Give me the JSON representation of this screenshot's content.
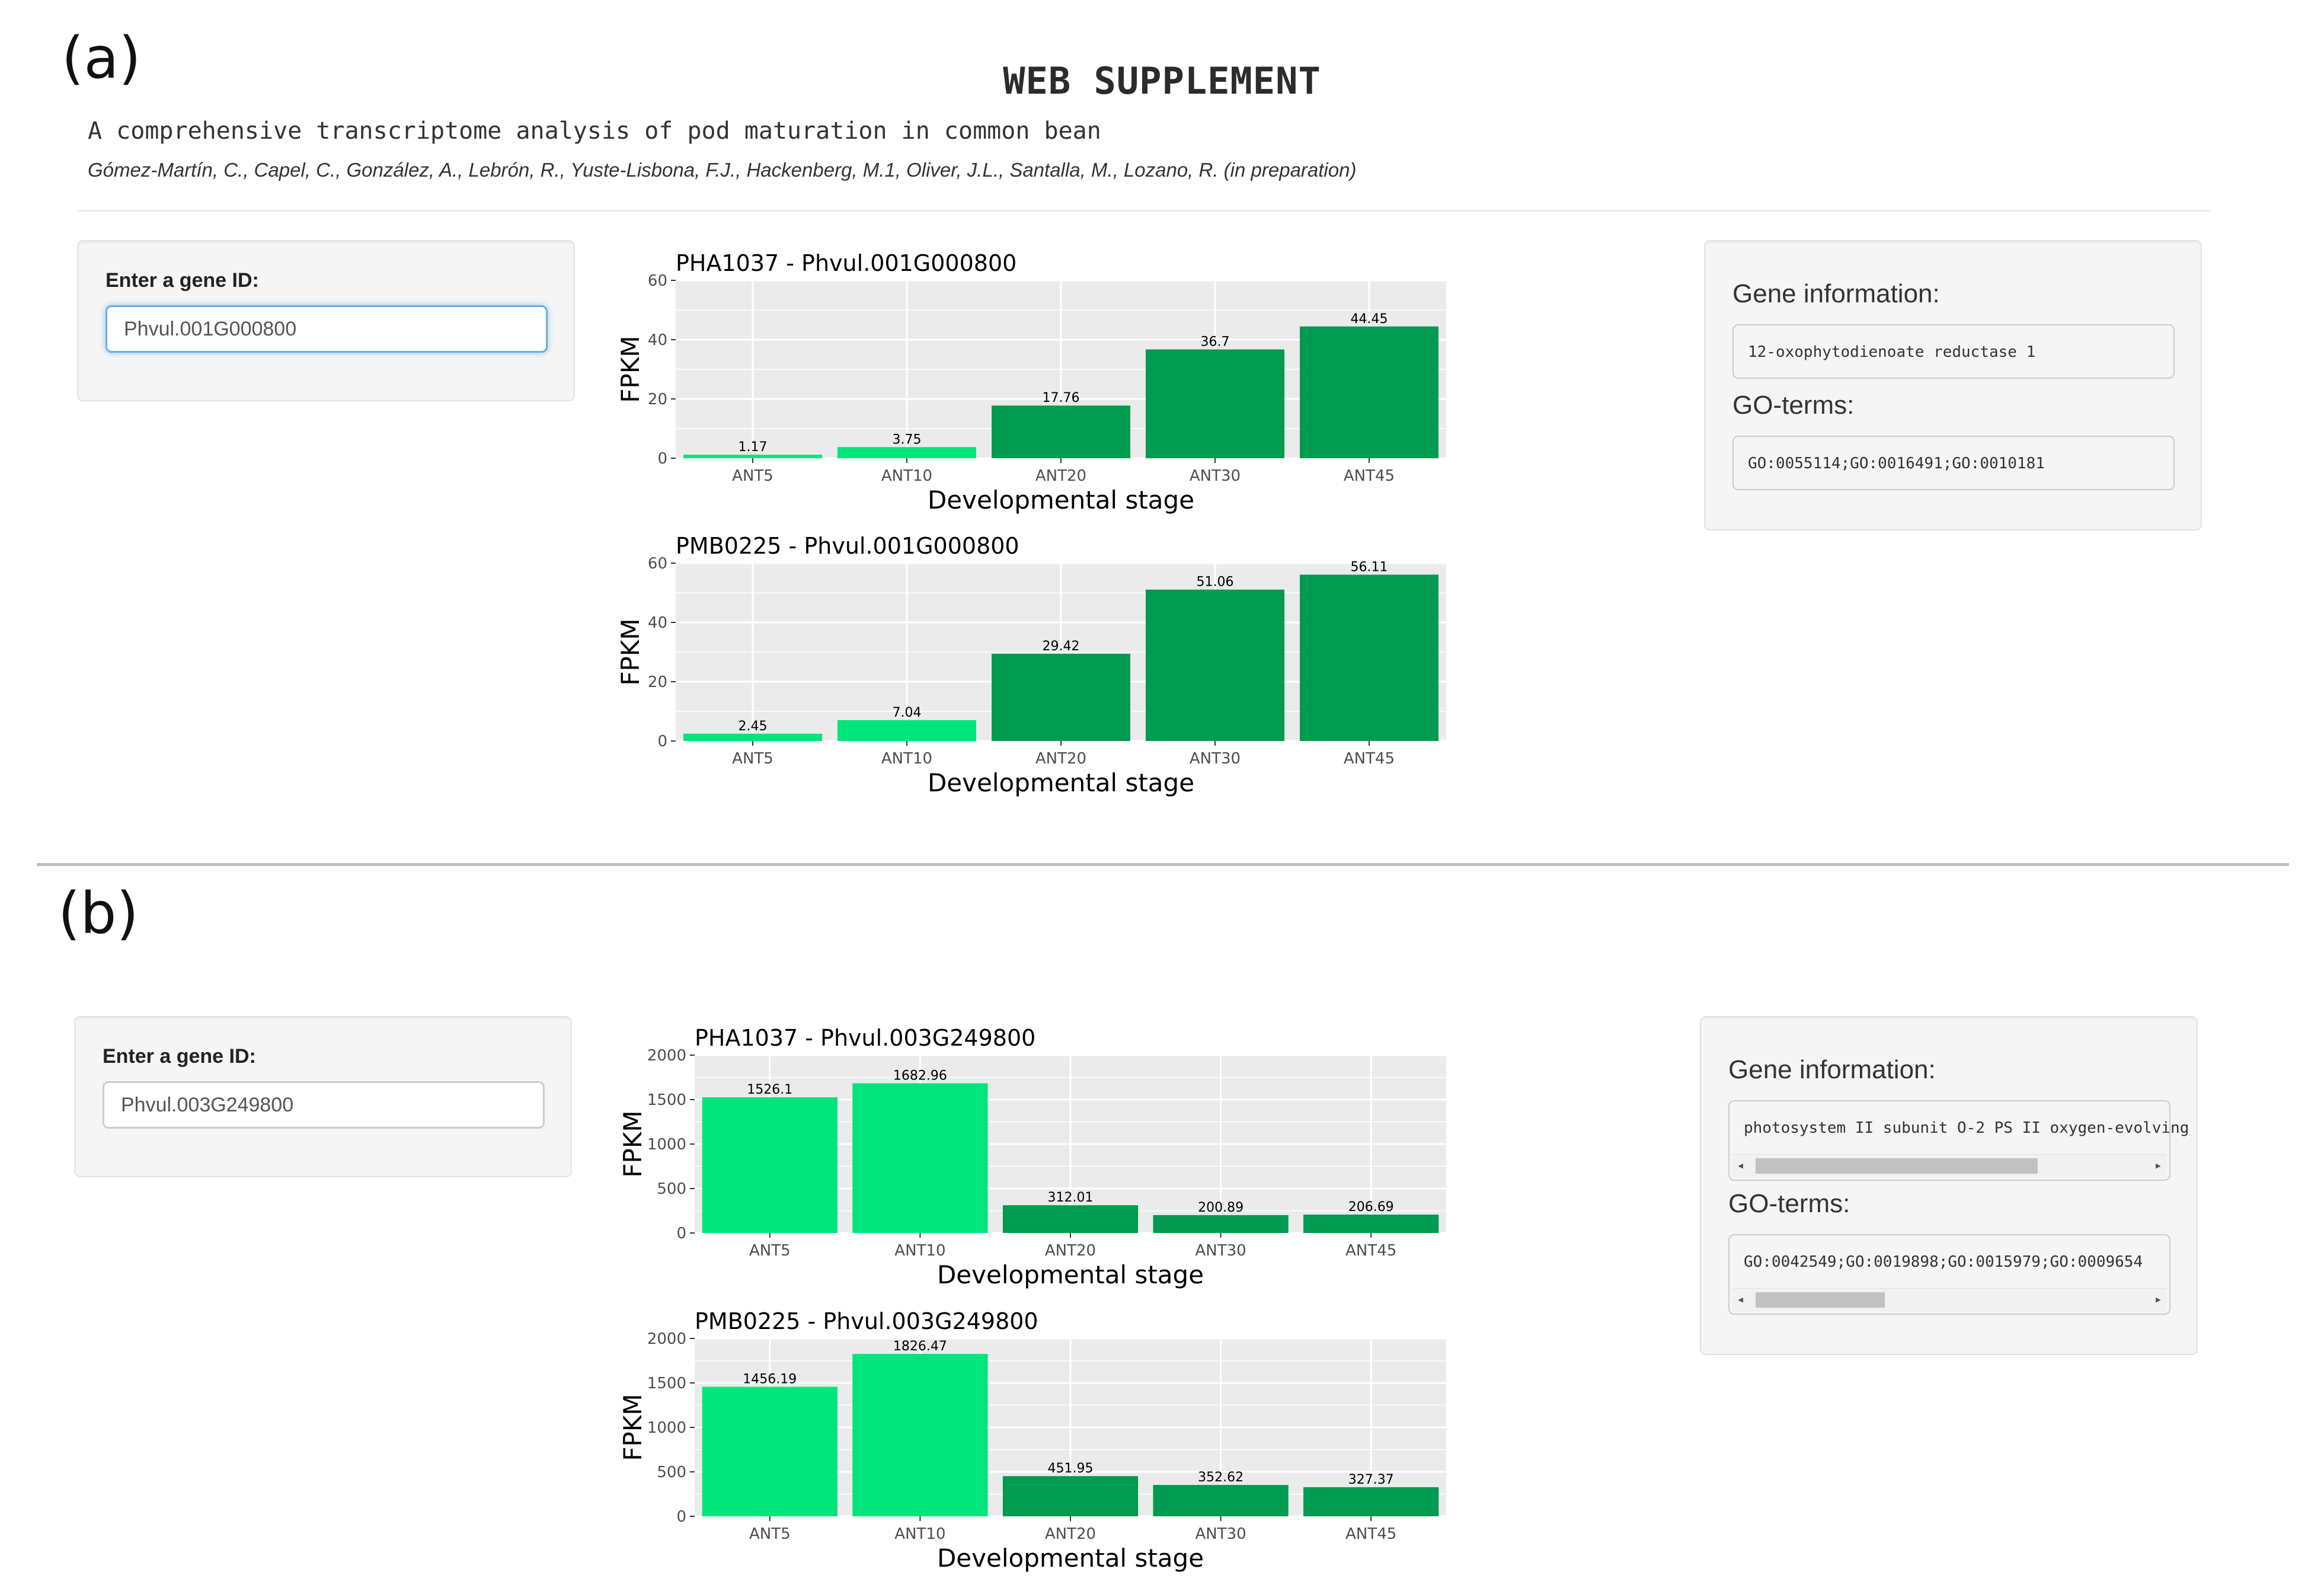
{
  "panel_a": {
    "label": "(a)",
    "title": "WEB SUPPLEMENT",
    "subtitle": "A comprehensive transcriptome analysis of pod maturation in common bean",
    "authors": "Gómez-Martín, C., Capel, C., González, A., Lebrón, R., Yuste-Lisbona, F.J., Hackenberg, M.1, Oliver, J.L., Santalla, M., Lozano, R. (in preparation)",
    "input_label": "Enter a gene ID:",
    "input_value": "Phvul.001G000800",
    "gene_info_heading": "Gene information:",
    "gene_info_value": "12-oxophytodienoate reductase 1",
    "go_terms_heading": "GO-terms:",
    "go_terms_value": "GO:0055114;GO:0016491;GO:0010181"
  },
  "panel_b": {
    "label": "(b)",
    "input_label": "Enter a gene ID:",
    "input_value": "Phvul.003G249800",
    "gene_info_heading": "Gene information:",
    "gene_info_value": "photosystem II subunit O-2 PS II oxygen-evolving",
    "go_terms_heading": "GO-terms:",
    "go_terms_value": "GO:0042549;GO:0019898;GO:0015979;GO:0009654"
  },
  "icons": {
    "scroll_left": "scroll-left-arrow-icon",
    "scroll_right": "scroll-right-arrow-icon"
  },
  "colors": {
    "bar_light": "#00e47c",
    "bar_dark": "#009a51",
    "plot_bg": "#ebebeb",
    "grid": "#ffffff",
    "input_focus": "#66afe9"
  },
  "chart_data": [
    {
      "type": "bar",
      "title": "PHA1037 - Phvul.001G000800",
      "xlabel": "Developmental stage",
      "ylabel": "FPKM",
      "categories": [
        "ANT5",
        "ANT10",
        "ANT20",
        "ANT30",
        "ANT45"
      ],
      "values": [
        1.17,
        3.75,
        17.76,
        36.7,
        44.45
      ],
      "value_labels": [
        "1.17",
        "3.75",
        "17.76",
        "36.7",
        "44.45"
      ],
      "bar_colors": [
        "#00e47c",
        "#00e47c",
        "#009a51",
        "#009a51",
        "#009a51"
      ],
      "ylim": [
        0,
        60
      ],
      "yticks": [
        0,
        20,
        40,
        60
      ]
    },
    {
      "type": "bar",
      "title": "PMB0225 - Phvul.001G000800",
      "xlabel": "Developmental stage",
      "ylabel": "FPKM",
      "categories": [
        "ANT5",
        "ANT10",
        "ANT20",
        "ANT30",
        "ANT45"
      ],
      "values": [
        2.45,
        7.04,
        29.42,
        51.06,
        56.11
      ],
      "value_labels": [
        "2.45",
        "7.04",
        "29.42",
        "51.06",
        "56.11"
      ],
      "bar_colors": [
        "#00e47c",
        "#00e47c",
        "#009a51",
        "#009a51",
        "#009a51"
      ],
      "ylim": [
        0,
        60
      ],
      "yticks": [
        0,
        20,
        40,
        60
      ]
    },
    {
      "type": "bar",
      "title": "PHA1037 - Phvul.003G249800",
      "xlabel": "Developmental stage",
      "ylabel": "FPKM",
      "categories": [
        "ANT5",
        "ANT10",
        "ANT20",
        "ANT30",
        "ANT45"
      ],
      "values": [
        1526.1,
        1682.96,
        312.01,
        200.89,
        206.69
      ],
      "value_labels": [
        "1526.1",
        "1682.96",
        "312.01",
        "200.89",
        "206.69"
      ],
      "bar_colors": [
        "#00e47c",
        "#00e47c",
        "#009a51",
        "#009a51",
        "#009a51"
      ],
      "ylim": [
        0,
        2000
      ],
      "yticks": [
        0,
        500,
        1000,
        1500,
        2000
      ]
    },
    {
      "type": "bar",
      "title": "PMB0225 - Phvul.003G249800",
      "xlabel": "Developmental stage",
      "ylabel": "FPKM",
      "categories": [
        "ANT5",
        "ANT10",
        "ANT20",
        "ANT30",
        "ANT45"
      ],
      "values": [
        1456.19,
        1826.47,
        451.95,
        352.62,
        327.37
      ],
      "value_labels": [
        "1456.19",
        "1826.47",
        "451.95",
        "352.62",
        "327.37"
      ],
      "bar_colors": [
        "#00e47c",
        "#00e47c",
        "#009a51",
        "#009a51",
        "#009a51"
      ],
      "ylim": [
        0,
        2000
      ],
      "yticks": [
        0,
        500,
        1000,
        1500,
        2000
      ]
    }
  ]
}
